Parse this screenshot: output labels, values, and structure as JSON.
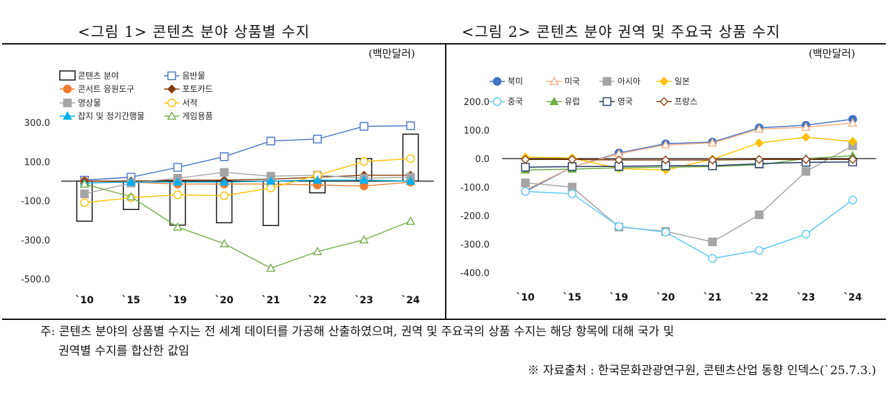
{
  "titles": {
    "fig1": "<그림 1> 콘텐츠 분야 상품별 수지",
    "fig2": "<그림 2> 콘텐츠 분야 권역 및 주요국 상품 수지",
    "unit1": "(백만달러)",
    "unit2": "(백만달러)"
  },
  "note": {
    "line1": "주: 콘텐츠 분야의 상품별 수지는 전 세계 데이터를 가공해 산출하였으며, 권역 및 주요국의 상품 수지는 해당 항목에 대해 국가 및",
    "line2": "권역별 수지를 합산한 값임",
    "source": "※ 자료출처 : 한국문화관광연구원, 콘텐츠산업 동향 인덱스(`25.7.3.)"
  },
  "chart_data": [
    {
      "type": "bar+line",
      "title": "<그림 1> 콘텐츠 분야 상품별 수지",
      "ylabel": "(백만달러)",
      "categories": [
        "`10",
        "`15",
        "`19",
        "`20",
        "`21",
        "`22",
        "`23",
        "`24"
      ],
      "ylim": [
        -500,
        300
      ],
      "yticks": [
        "300.0",
        "100.0",
        "-100.0",
        "-300.0",
        "-500.0"
      ],
      "ytick_values": [
        300,
        100,
        -100,
        -300,
        -500
      ],
      "bar_series": {
        "name": "콘텐츠 분야",
        "values": [
          -205,
          -145,
          -225,
          -213,
          -227,
          -60,
          115,
          240
        ]
      },
      "series": [
        {
          "name": "음반물",
          "color": "#4472C4",
          "marker": "square-open",
          "values": [
            5,
            20,
            70,
            125,
            205,
            215,
            280,
            283
          ]
        },
        {
          "name": "콘서트 응원도구",
          "color": "#ED7D31",
          "marker": "circle-filled",
          "values": [
            0,
            -5,
            -15,
            -15,
            -15,
            -20,
            -25,
            -5
          ]
        },
        {
          "name": "포토카드",
          "color": "#843C0C",
          "marker": "diamond-filled",
          "values": [
            0,
            0,
            5,
            5,
            10,
            20,
            30,
            30
          ]
        },
        {
          "name": "영상물",
          "color": "#A5A5A5",
          "marker": "square-filled",
          "values": [
            -65,
            -10,
            15,
            45,
            25,
            30,
            15,
            20
          ]
        },
        {
          "name": "서적",
          "color": "#FFC000",
          "marker": "circle-open",
          "values": [
            -110,
            -85,
            -70,
            -75,
            -35,
            30,
            100,
            115
          ]
        },
        {
          "name": "잡지 및 정기간행물",
          "color": "#00B0F0",
          "marker": "triangle-filled",
          "values": [
            -10,
            -5,
            -5,
            -5,
            0,
            5,
            5,
            0
          ]
        },
        {
          "name": "게임용품",
          "color": "#70AD47",
          "marker": "triangle-open",
          "values": [
            -15,
            -80,
            -235,
            -320,
            -445,
            -360,
            -300,
            -205
          ]
        }
      ]
    },
    {
      "type": "line",
      "title": "<그림 2> 콘텐츠 분야 권역 및 주요국 상품 수지",
      "ylabel": "(백만달러)",
      "categories": [
        "`10",
        "`15",
        "`19",
        "`20",
        "`21",
        "`22",
        "`23",
        "`24"
      ],
      "ylim": [
        -400,
        200
      ],
      "yticks": [
        "200.0",
        "100.0",
        "0.0",
        "-100.0",
        "-200.0",
        "-300.0",
        "-400.0"
      ],
      "ytick_values": [
        200,
        100,
        0,
        -100,
        -200,
        -300,
        -400
      ],
      "series": [
        {
          "name": "북미",
          "color": "#4472C4",
          "marker": "circle-filled",
          "values": [
            -115,
            -30,
            20,
            52,
            58,
            108,
            117,
            138
          ]
        },
        {
          "name": "미국",
          "color": "#F4B183",
          "marker": "triangle-open",
          "values": [
            -110,
            -30,
            17,
            48,
            55,
            103,
            110,
            125
          ]
        },
        {
          "name": "아시아",
          "color": "#A5A5A5",
          "marker": "square-filled",
          "values": [
            -85,
            -100,
            -240,
            -255,
            -292,
            -197,
            -45,
            45
          ]
        },
        {
          "name": "일본",
          "color": "#FFC000",
          "marker": "diamond-filled",
          "values": [
            5,
            2,
            -35,
            -40,
            -2,
            55,
            75,
            60
          ]
        },
        {
          "name": "중국",
          "color": "#5BC8F5",
          "marker": "circle-open",
          "values": [
            -115,
            -123,
            -238,
            -258,
            -350,
            -322,
            -265,
            -145
          ]
        },
        {
          "name": "유럽",
          "color": "#70AD47",
          "marker": "triangle-filled",
          "values": [
            -40,
            -37,
            -32,
            -30,
            -28,
            -22,
            0,
            10
          ]
        },
        {
          "name": "영국",
          "color": "#1F3864",
          "marker": "square-open",
          "values": [
            -30,
            -28,
            -27,
            -25,
            -25,
            -18,
            -13,
            -12
          ]
        },
        {
          "name": "프랑스",
          "color": "#843C0C",
          "marker": "diamond-open",
          "values": [
            -3,
            -3,
            -5,
            -5,
            -5,
            -3,
            -3,
            -3
          ]
        }
      ]
    }
  ]
}
